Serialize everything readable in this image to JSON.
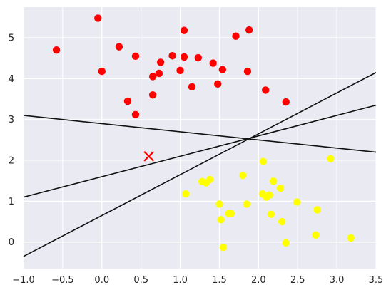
{
  "chart_data": {
    "type": "scatter",
    "title": "",
    "xlabel": "",
    "ylabel": "",
    "xlim": [
      -1.0,
      3.5
    ],
    "ylim": [
      -0.65,
      5.75
    ],
    "grid": true,
    "background": "#eaeaf2",
    "xticks": [
      "−1.0",
      "−0.5",
      "0.0",
      "0.5",
      "1.0",
      "1.5",
      "2.0",
      "2.5",
      "3.0",
      "3.5"
    ],
    "xtick_values": [
      -1.0,
      -0.5,
      0.0,
      0.5,
      1.0,
      1.5,
      2.0,
      2.5,
      3.0,
      3.5
    ],
    "yticks": [
      "0",
      "1",
      "2",
      "3",
      "4",
      "5"
    ],
    "ytick_values": [
      0,
      1,
      2,
      3,
      4,
      5
    ],
    "series": [
      {
        "color": "#ff0000",
        "marker": "circle",
        "points": [
          [
            -0.58,
            4.7
          ],
          [
            -0.05,
            5.48
          ],
          [
            0.0,
            4.18
          ],
          [
            0.22,
            4.78
          ],
          [
            0.33,
            3.45
          ],
          [
            0.43,
            4.55
          ],
          [
            0.43,
            3.12
          ],
          [
            0.65,
            4.05
          ],
          [
            0.65,
            3.6
          ],
          [
            0.73,
            4.13
          ],
          [
            0.75,
            4.4
          ],
          [
            0.9,
            4.56
          ],
          [
            1.0,
            4.2
          ],
          [
            1.05,
            5.18
          ],
          [
            1.05,
            4.53
          ],
          [
            1.15,
            3.8
          ],
          [
            1.23,
            4.51
          ],
          [
            1.42,
            4.38
          ],
          [
            1.48,
            3.87
          ],
          [
            1.54,
            4.22
          ],
          [
            1.71,
            5.04
          ],
          [
            1.86,
            4.18
          ],
          [
            1.88,
            5.19
          ],
          [
            2.09,
            3.72
          ],
          [
            2.35,
            3.43
          ]
        ]
      },
      {
        "color": "#ffff00",
        "marker": "circle",
        "points": [
          [
            1.07,
            1.18
          ],
          [
            1.28,
            1.48
          ],
          [
            1.33,
            1.45
          ],
          [
            1.38,
            1.53
          ],
          [
            1.5,
            0.93
          ],
          [
            1.52,
            0.55
          ],
          [
            1.55,
            -0.13
          ],
          [
            1.62,
            0.7
          ],
          [
            1.65,
            0.7
          ],
          [
            1.8,
            1.63
          ],
          [
            1.85,
            0.93
          ],
          [
            2.05,
            1.18
          ],
          [
            2.06,
            1.97
          ],
          [
            2.1,
            1.1
          ],
          [
            2.14,
            1.15
          ],
          [
            2.16,
            0.68
          ],
          [
            2.19,
            1.49
          ],
          [
            2.28,
            1.32
          ],
          [
            2.3,
            0.5
          ],
          [
            2.35,
            -0.02
          ],
          [
            2.49,
            0.98
          ],
          [
            2.73,
            0.17
          ],
          [
            2.75,
            0.79
          ],
          [
            2.92,
            2.04
          ],
          [
            3.18,
            0.1
          ]
        ]
      }
    ],
    "marker_point": {
      "x": 0.6,
      "y": 2.1,
      "marker": "x",
      "color": "#ff0000"
    },
    "lines": [
      {
        "slope": 1.0,
        "intercept": 0.65,
        "color": "#111111"
      },
      {
        "slope": 0.5,
        "intercept": 1.6,
        "color": "#111111"
      },
      {
        "slope": -0.2,
        "intercept": 2.9,
        "color": "#111111"
      }
    ]
  }
}
